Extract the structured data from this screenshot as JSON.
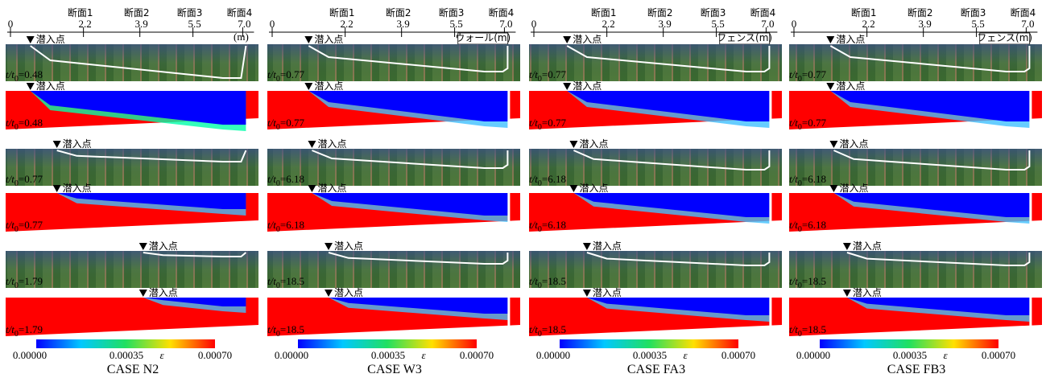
{
  "time_var": "t/t",
  "time_sub": "0",
  "time_eq": "=",
  "columns": [
    {
      "sections": [
        "断面1",
        "断面2",
        "断面3",
        "断面4"
      ],
      "ticks": [
        "0",
        "2.2",
        "3.9",
        "5.5",
        "7.0"
      ],
      "unit": "(m)",
      "plunge": "潜入点",
      "times": [
        "0.48",
        "0.48",
        "0.77",
        "0.77",
        "1.79",
        "1.79"
      ],
      "colorbar": [
        "0.00000",
        "0.00035",
        "0.00070"
      ],
      "epsilon": "ε",
      "case": "CASE N2"
    },
    {
      "sections": [
        "断面1",
        "断面2",
        "断面3",
        "断面4"
      ],
      "ticks": [
        "0",
        "2.2",
        "3.9",
        "5.5",
        "7.0"
      ],
      "annotation": "ウォール(m)",
      "plunge": "潜入点",
      "times": [
        "0.77",
        "0.77",
        "6.18",
        "6.18",
        "18.5",
        "18.5"
      ],
      "colorbar": [
        "0.00000",
        "0.00035",
        "0.00070"
      ],
      "epsilon": "ε",
      "case": "CASE W3"
    },
    {
      "sections": [
        "断面1",
        "断面2",
        "断面3",
        "断面4"
      ],
      "ticks": [
        "0",
        "2.2",
        "3.9",
        "5.5",
        "7.0"
      ],
      "annotation": "フェンス(m)",
      "plunge": "潜入点",
      "times": [
        "0.77",
        "0.77",
        "6.18",
        "6.18",
        "18.5",
        "18.5"
      ],
      "colorbar": [
        "0.00000",
        "0.00035",
        "0.00070"
      ],
      "epsilon": "ε",
      "case": "CASE FA3"
    },
    {
      "sections": [
        "断面1",
        "断面2",
        "断面3",
        "断面4"
      ],
      "ticks": [
        "0",
        "2.2",
        "3.9",
        "5.5",
        "7.0"
      ],
      "annotation": "フェンス(m)",
      "plunge": "潜入点",
      "times": [
        "0.77",
        "0.77",
        "6.18",
        "6.18",
        "18.5",
        "18.5"
      ],
      "colorbar": [
        "0.00000",
        "0.00035",
        "0.00070"
      ],
      "epsilon": "ε",
      "case": "CASE FB3"
    }
  ]
}
